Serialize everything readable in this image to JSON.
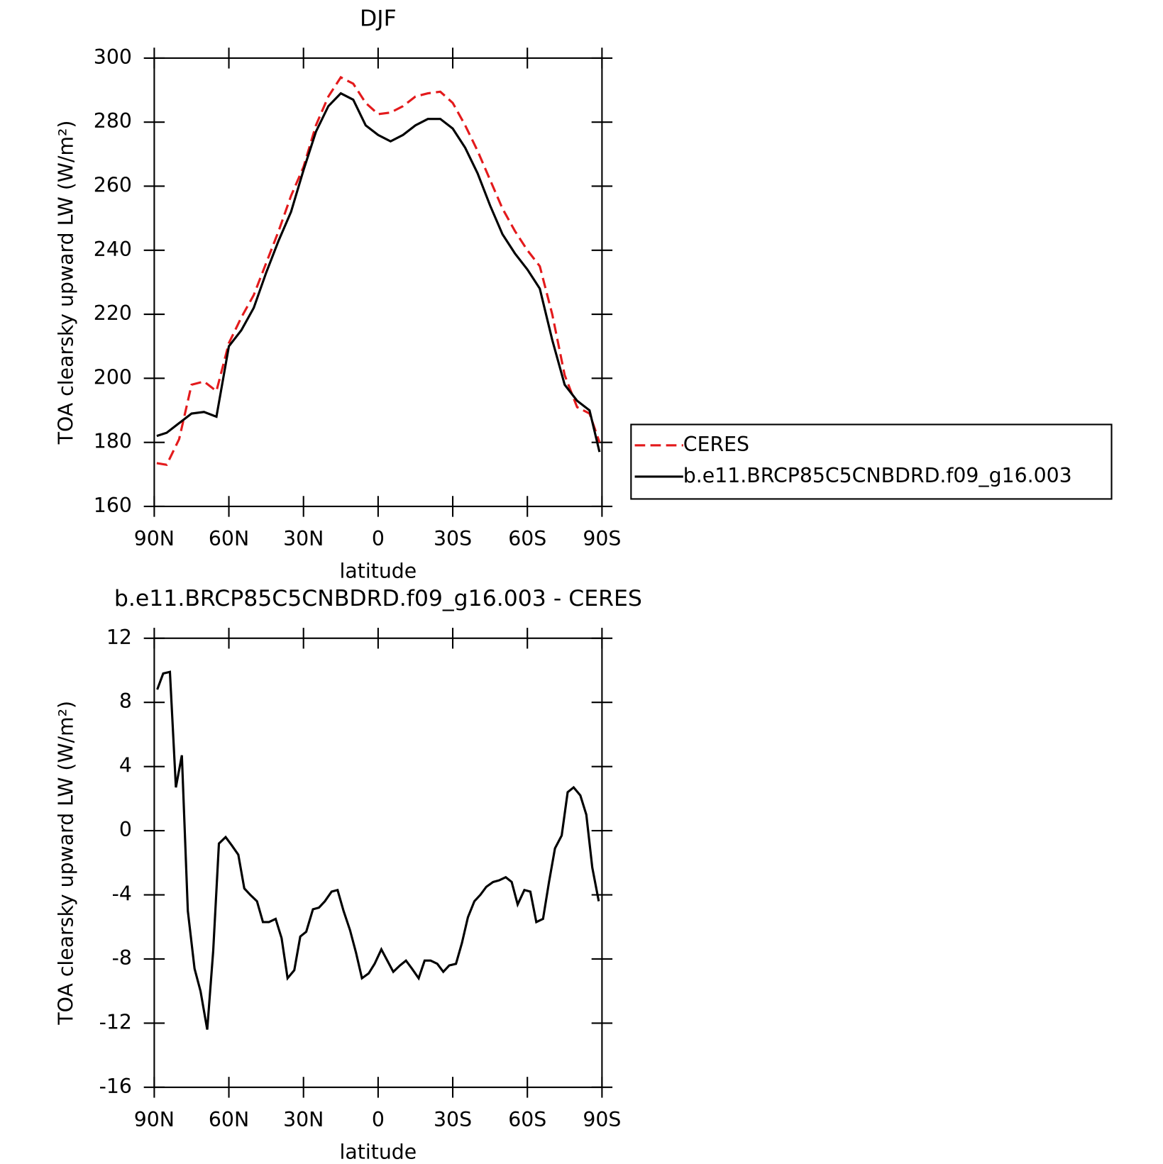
{
  "chart_data": [
    {
      "type": "line",
      "title": "DJF",
      "xlabel": "latitude",
      "ylabel": "TOA clearsky upward LW (W/m²)",
      "x": [
        89,
        85,
        80,
        75,
        70,
        65,
        60,
        55,
        50,
        45,
        40,
        35,
        30,
        25,
        20,
        15,
        10,
        5,
        0,
        -5,
        -10,
        -15,
        -20,
        -25,
        -30,
        -35,
        -40,
        -45,
        -50,
        -55,
        -60,
        -65,
        -70,
        -75,
        -80,
        -85,
        -89
      ],
      "series": [
        {
          "name": "CERES",
          "color": "#e31a1c",
          "linestyle": "dashed",
          "values": [
            173.5,
            173,
            181,
            198,
            199,
            196,
            211,
            219,
            226,
            236,
            246,
            257,
            266,
            279,
            288,
            294,
            292,
            286,
            282.5,
            283,
            285,
            288,
            289,
            289.5,
            286,
            279,
            271,
            262,
            253,
            246,
            240,
            235,
            220,
            201,
            191,
            189,
            180
          ]
        },
        {
          "name": "b.e11.BRCP85C5CNBDRD.f09_g16.003",
          "color": "#000000",
          "linestyle": "solid",
          "values": [
            182,
            183,
            186,
            189,
            189.5,
            188,
            210,
            215,
            222,
            233,
            243,
            252,
            265,
            277,
            285,
            289,
            287,
            279,
            276,
            274,
            276,
            279,
            281,
            281,
            278,
            272,
            264,
            254,
            245,
            239,
            234,
            228,
            212,
            198,
            193,
            190,
            177
          ]
        }
      ],
      "xlim": [
        90,
        -90
      ],
      "xticks": [
        {
          "value": 90,
          "label": "90N"
        },
        {
          "value": 60,
          "label": "60N"
        },
        {
          "value": 30,
          "label": "30N"
        },
        0,
        {
          "value": -30,
          "label": "30S"
        },
        {
          "value": -60,
          "label": "60S"
        },
        {
          "value": -90,
          "label": "90S"
        }
      ],
      "ylim": [
        160,
        300
      ],
      "yticks": [
        160,
        180,
        200,
        220,
        240,
        260,
        280,
        300
      ],
      "legend": "outside-right"
    },
    {
      "type": "line",
      "title": "b.e11.BRCP85C5CNBDRD.f09_g16.003 - CERES",
      "xlabel": "latitude",
      "ylabel": "TOA clearsky upward LW (W/m²)",
      "x": [
        88.8,
        86.4,
        83.7,
        81.3,
        78.9,
        76.5,
        73.8,
        71.4,
        68.7,
        66.3,
        64.0,
        61.3,
        58.9,
        56.2,
        53.8,
        51.4,
        48.7,
        46.3,
        43.9,
        41.2,
        38.8,
        36.4,
        33.7,
        31.3,
        28.9,
        26.2,
        23.8,
        21.4,
        18.7,
        16.3,
        13.9,
        11.3,
        8.9,
        6.5,
        3.8,
        1.4,
        -1.3,
        -3.7,
        -6.1,
        -8.8,
        -11.2,
        -13.6,
        -16.3,
        -18.7,
        -21.1,
        -23.8,
        -26.2,
        -28.6,
        -31.3,
        -33.7,
        -36.1,
        -38.7,
        -41.1,
        -43.5,
        -46.2,
        -48.6,
        -51.3,
        -53.7,
        -56.1,
        -58.8,
        -61.2,
        -63.6,
        -66.3,
        -68.7,
        -71.1,
        -73.8,
        -76.2,
        -78.6,
        -81.3,
        -83.7,
        -86.1,
        -88.7
      ],
      "values": [
        8.8,
        9.8,
        9.9,
        2.7,
        4.7,
        -5,
        -8.6,
        -10,
        -12.4,
        -7.5,
        -0.8,
        -0.4,
        -0.9,
        -1.5,
        -3.6,
        -4.0,
        -4.4,
        -5.7,
        -5.7,
        -5.5,
        -6.7,
        -9.2,
        -8.7,
        -6.6,
        -6.3,
        -4.9,
        -4.8,
        -4.4,
        -3.8,
        -3.7,
        -5.0,
        -6.2,
        -7.6,
        -9.2,
        -8.9,
        -8.3,
        -7.4,
        -8.1,
        -8.8,
        -8.4,
        -8.1,
        -8.6,
        -9.2,
        -8.1,
        -8.1,
        -8.3,
        -8.8,
        -8.4,
        -8.3,
        -7.0,
        -5.4,
        -4.4,
        -4.0,
        -3.5,
        -3.2,
        -3.1,
        -2.9,
        -3.2,
        -4.6,
        -3.7,
        -3.8,
        -5.7,
        -5.5,
        -3.2,
        -1.1,
        -0.3,
        2.4,
        2.7,
        2.2,
        1.0,
        -2.3,
        -4.4
      ],
      "color": "#000000",
      "xlim": [
        90,
        -90
      ],
      "xticks": [
        {
          "value": 90,
          "label": "90N"
        },
        {
          "value": 60,
          "label": "60N"
        },
        {
          "value": 30,
          "label": "30N"
        },
        0,
        {
          "value": -30,
          "label": "30S"
        },
        {
          "value": -60,
          "label": "60S"
        },
        {
          "value": -90,
          "label": "90S"
        }
      ],
      "ylim": [
        -16,
        12
      ],
      "yticks": [
        -16,
        -12,
        -8,
        -4,
        0,
        4,
        8,
        12
      ]
    }
  ]
}
